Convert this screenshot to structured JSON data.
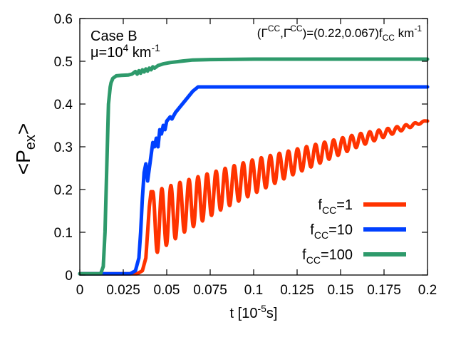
{
  "chart_data": {
    "type": "line",
    "xlim": [
      0,
      0.2
    ],
    "ylim": [
      0,
      0.6
    ],
    "xticks": [
      "0",
      "0.025",
      "0.05",
      "0.075",
      "0.1",
      "0.125",
      "0.15",
      "0.175",
      "0.2"
    ],
    "yticks": [
      "0",
      "0.1",
      "0.2",
      "0.3",
      "0.4",
      "0.5",
      "0.6"
    ],
    "xlabel": {
      "main": "t [10",
      "sup": "-5",
      "tail": "s]"
    },
    "ylabel": {
      "lt": "<P",
      "sub": "ex",
      "gt": ">"
    },
    "annotation_case": "Case B",
    "annotation_mu": {
      "mu": "μ=10",
      "sup": "4",
      "unit": " km",
      "unitsup": "-1"
    },
    "annotation_gamma": {
      "open": "(Γ",
      "sup1": "CC",
      "mid": ",Γ̄",
      "sup2": "CC",
      "eq": ")=(0.22,0.067)f",
      "sub": "CC",
      "unit": " km",
      "unitsup": "-1"
    },
    "legend_position": "bottom-right",
    "series": [
      {
        "name": "fCC=1",
        "label_main": "f",
        "label_sub": "CC",
        "label_eq": "=1",
        "color": "#ff3300",
        "points": [
          [
            0,
            0.003
          ],
          [
            0.033,
            0.003
          ],
          [
            0.036,
            0.01
          ],
          [
            0.038,
            0.04
          ],
          [
            0.039,
            0.1
          ],
          [
            0.04,
            0.16
          ],
          [
            0.041,
            0.195
          ],
          [
            0.042,
            0.185
          ]
        ],
        "oscillation": {
          "x_start": 0.042,
          "x_end": 0.2,
          "period": 0.0052,
          "upper": [
            [
              0.042,
              0.195
            ],
            [
              0.06,
              0.22
            ],
            [
              0.08,
              0.245
            ],
            [
              0.1,
              0.27
            ],
            [
              0.12,
              0.29
            ],
            [
              0.14,
              0.31
            ],
            [
              0.16,
              0.33
            ],
            [
              0.18,
              0.345
            ],
            [
              0.2,
              0.362
            ]
          ],
          "lower": [
            [
              0.042,
              0.045
            ],
            [
              0.05,
              0.07
            ],
            [
              0.06,
              0.1
            ],
            [
              0.08,
              0.15
            ],
            [
              0.1,
              0.19
            ],
            [
              0.12,
              0.23
            ],
            [
              0.14,
              0.265
            ],
            [
              0.16,
              0.3
            ],
            [
              0.18,
              0.33
            ],
            [
              0.2,
              0.36
            ]
          ]
        }
      },
      {
        "name": "fCC=10",
        "label_main": "f",
        "label_sub": "CC",
        "label_eq": "=10",
        "color": "#0040ff",
        "points": [
          [
            0,
            0.003
          ],
          [
            0.029,
            0.003
          ],
          [
            0.032,
            0.01
          ],
          [
            0.034,
            0.04
          ],
          [
            0.035,
            0.1
          ],
          [
            0.036,
            0.18
          ],
          [
            0.037,
            0.24
          ],
          [
            0.038,
            0.26
          ],
          [
            0.039,
            0.22
          ],
          [
            0.04,
            0.25
          ],
          [
            0.041,
            0.28
          ],
          [
            0.042,
            0.31
          ],
          [
            0.043,
            0.3
          ],
          [
            0.044,
            0.32
          ],
          [
            0.045,
            0.3
          ],
          [
            0.046,
            0.34
          ],
          [
            0.047,
            0.33
          ],
          [
            0.048,
            0.35
          ],
          [
            0.049,
            0.34
          ],
          [
            0.05,
            0.36
          ],
          [
            0.052,
            0.37
          ],
          [
            0.053,
            0.365
          ],
          [
            0.055,
            0.38
          ],
          [
            0.057,
            0.39
          ],
          [
            0.059,
            0.4
          ],
          [
            0.061,
            0.41
          ],
          [
            0.063,
            0.42
          ],
          [
            0.065,
            0.43
          ],
          [
            0.068,
            0.44
          ],
          [
            0.2,
            0.44
          ]
        ]
      },
      {
        "name": "fCC=100",
        "label_main": "f",
        "label_sub": "CC",
        "label_eq": "=100",
        "color": "#2e9a6b",
        "points": [
          [
            0,
            0.003
          ],
          [
            0.012,
            0.003
          ],
          [
            0.0135,
            0.02
          ],
          [
            0.0145,
            0.1
          ],
          [
            0.0155,
            0.25
          ],
          [
            0.0165,
            0.4
          ],
          [
            0.0175,
            0.44
          ],
          [
            0.018,
            0.45
          ],
          [
            0.019,
            0.46
          ],
          [
            0.021,
            0.466
          ],
          [
            0.024,
            0.467
          ],
          [
            0.028,
            0.468
          ],
          [
            0.03,
            0.47
          ],
          [
            0.032,
            0.476
          ],
          [
            0.033,
            0.47
          ],
          [
            0.034,
            0.478
          ],
          [
            0.035,
            0.472
          ],
          [
            0.036,
            0.48
          ],
          [
            0.037,
            0.475
          ],
          [
            0.038,
            0.482
          ],
          [
            0.039,
            0.477
          ],
          [
            0.04,
            0.484
          ],
          [
            0.041,
            0.48
          ],
          [
            0.042,
            0.487
          ],
          [
            0.043,
            0.484
          ],
          [
            0.045,
            0.49
          ],
          [
            0.048,
            0.494
          ],
          [
            0.052,
            0.497
          ],
          [
            0.058,
            0.5
          ],
          [
            0.065,
            0.503
          ],
          [
            0.075,
            0.504
          ],
          [
            0.1,
            0.505
          ],
          [
            0.2,
            0.505
          ]
        ]
      }
    ]
  }
}
